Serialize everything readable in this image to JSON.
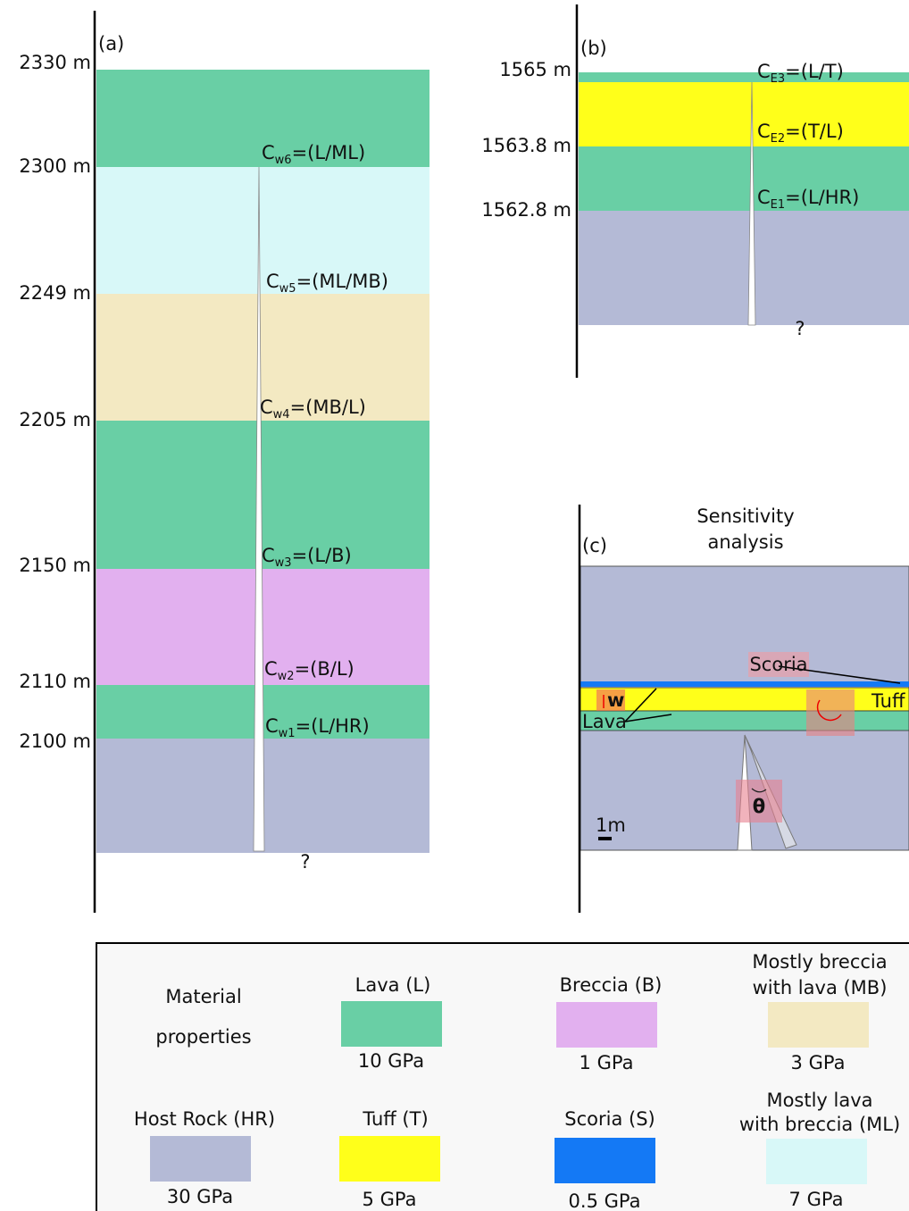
{
  "panel_a": {
    "label": "(a)",
    "depths": [
      "2330 m",
      "2300 m",
      "2249 m",
      "2205 m",
      "2150 m",
      "2110 m",
      "2100 m"
    ],
    "contacts": [
      {
        "symbol": "C",
        "sub": "w6",
        "text": "=(L/ML)"
      },
      {
        "symbol": "C",
        "sub": "w5",
        "text": "=(ML/MB)"
      },
      {
        "symbol": "C",
        "sub": "w4",
        "text": "=(MB/L)"
      },
      {
        "symbol": "C",
        "sub": "w3",
        "text": "=(L/B)"
      },
      {
        "symbol": "C",
        "sub": "w2",
        "text": "=(B/L)"
      },
      {
        "symbol": "C",
        "sub": "w1",
        "text": "=(L/HR)"
      }
    ],
    "unknown": "?"
  },
  "panel_b": {
    "label": "(b)",
    "depths": [
      "1565 m",
      "1563.8 m",
      "1562.8 m"
    ],
    "contacts": [
      {
        "symbol": "C",
        "sub": "E3",
        "text": "=(L/T)"
      },
      {
        "symbol": "C",
        "sub": "E2",
        "text": "=(T/L)"
      },
      {
        "symbol": "C",
        "sub": "E1",
        "text": "=(L/HR)"
      }
    ],
    "unknown": "?"
  },
  "panel_c": {
    "label": "(c)",
    "title": [
      "Sensitivity",
      "analysis"
    ],
    "scoria": "Scoria",
    "tuff": "Tuff",
    "lava": "Lava",
    "width": "w",
    "angle": "θ",
    "scale": "1m"
  },
  "legend": {
    "title": [
      "Material",
      "properties"
    ],
    "items": [
      {
        "name": [
          "Lava (L)"
        ],
        "modulus": "10 GPa"
      },
      {
        "name": [
          "Breccia (B)"
        ],
        "modulus": "1 GPa"
      },
      {
        "name": [
          "Mostly breccia",
          "with lava (MB)"
        ],
        "modulus": "3 GPa"
      },
      {
        "name": [
          "Host Rock (HR)"
        ],
        "modulus": "30 GPa"
      },
      {
        "name": [
          "Tuff (T)"
        ],
        "modulus": "5 GPa"
      },
      {
        "name": [
          "Scoria (S)"
        ],
        "modulus": "0.5 GPa"
      },
      {
        "name": [
          "Mostly lava",
          "with breccia (ML)"
        ],
        "modulus": "7 GPa"
      }
    ]
  }
}
